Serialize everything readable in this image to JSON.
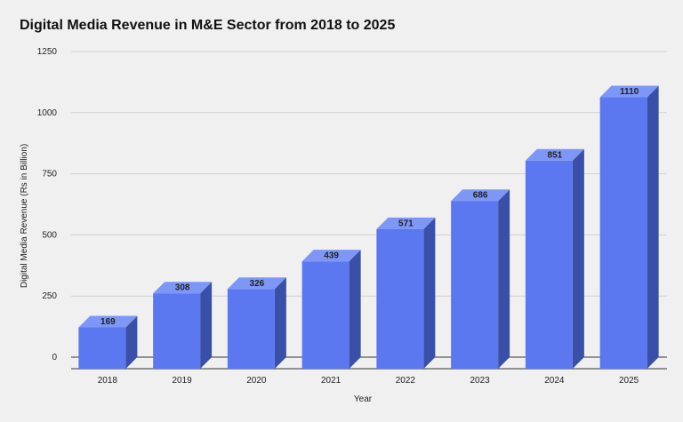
{
  "chart_data": {
    "type": "bar",
    "title": "Digital Media Revenue in M&E Sector from 2018 to 2025",
    "xlabel": "Year",
    "ylabel": "Digital Media Revenue (Rs in Billion)",
    "categories": [
      "2018",
      "2019",
      "2020",
      "2021",
      "2022",
      "2023",
      "2024",
      "2025"
    ],
    "values": [
      169,
      308,
      326,
      439,
      571,
      686,
      851,
      1110
    ],
    "data_labels": [
      "169",
      "308",
      "326",
      "439",
      "571",
      "686",
      "851",
      "1110"
    ],
    "ylim": [
      0,
      1250
    ],
    "yticks": [
      0,
      250,
      500,
      750,
      1000,
      1250
    ],
    "ytick_labels": [
      "0",
      "250",
      "500",
      "750",
      "1000",
      "1250"
    ],
    "grid": true,
    "legend": "none",
    "style": "3d-bar",
    "colors": {
      "bar_front": "#5b78f0",
      "bar_top": "#7e97f7",
      "bar_side": "#3a4fa8",
      "gridline": "#d0d0d0",
      "axis": "#333333"
    }
  }
}
